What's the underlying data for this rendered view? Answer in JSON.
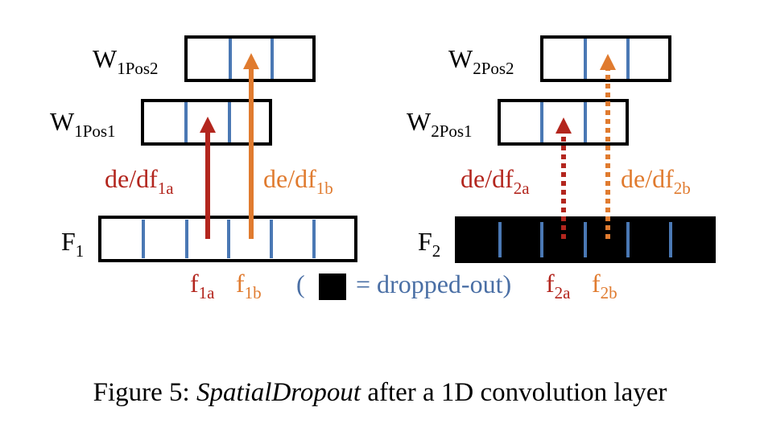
{
  "colors": {
    "black": "#000000",
    "blue": "#4a78b4",
    "red": "#b3261e",
    "orange": "#e07b2f",
    "legend_text": "#4a6fa5"
  },
  "labels": {
    "w1pos2": {
      "main": "W",
      "sub": "1Pos2"
    },
    "w1pos1": {
      "main": "W",
      "sub": "1Pos1"
    },
    "w2pos2": {
      "main": "W",
      "sub": "2Pos2"
    },
    "w2pos1": {
      "main": "W",
      "sub": "2Pos1"
    },
    "f1": {
      "main": "F",
      "sub": "1"
    },
    "f2": {
      "main": "F",
      "sub": "2"
    },
    "de_df1a": {
      "main": "de/df",
      "sub": "1a"
    },
    "de_df1b": {
      "main": "de/df",
      "sub": "1b"
    },
    "de_df2a": {
      "main": "de/df",
      "sub": "2a"
    },
    "de_df2b": {
      "main": "de/df",
      "sub": "2b"
    },
    "f1a": {
      "main": "f",
      "sub": "1a"
    },
    "f1b": {
      "main": "f",
      "sub": "1b"
    },
    "f2a": {
      "main": "f",
      "sub": "2a"
    },
    "f2b": {
      "main": "f",
      "sub": "2b"
    }
  },
  "legend": {
    "open_paren": "(",
    "text": "= dropped-out)"
  },
  "caption": {
    "prefix": "Figure 5: ",
    "italic": "SpatialDropout",
    "suffix": " after a 1D convolution layer"
  }
}
